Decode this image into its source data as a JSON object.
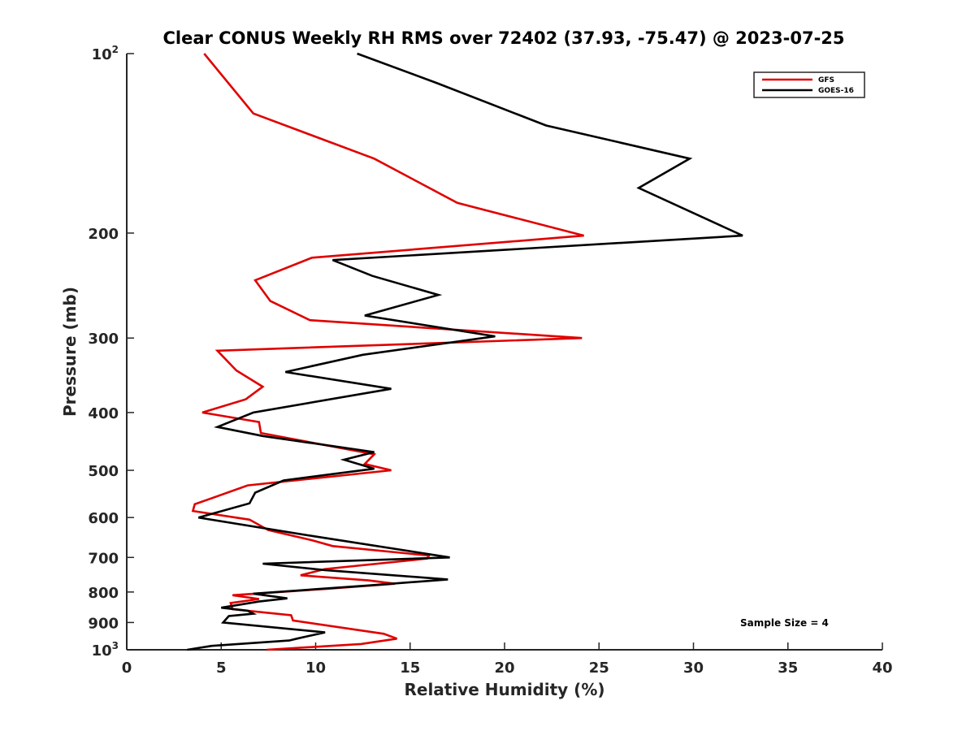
{
  "chart_data": {
    "type": "line",
    "title": "Clear CONUS Weekly RH RMS over 72402 (37.93, -75.47) @ 2023-07-25",
    "xlabel": "Relative Humidity (%)",
    "ylabel": "Pressure (mb)",
    "xlim": [
      0,
      40
    ],
    "ylim": [
      100,
      1000
    ],
    "yscale": "log",
    "yreverse": true,
    "x_ticks": [
      "0",
      "5",
      "10",
      "15",
      "20",
      "25",
      "30",
      "35",
      "40"
    ],
    "y_ticks": [
      {
        "value": 100,
        "base": "10",
        "exp": "2"
      },
      {
        "value": 200,
        "label": "200"
      },
      {
        "value": 300,
        "label": "300"
      },
      {
        "value": 400,
        "label": "400"
      },
      {
        "value": 500,
        "label": "500"
      },
      {
        "value": 600,
        "label": "600"
      },
      {
        "value": 700,
        "label": "700"
      },
      {
        "value": 800,
        "label": "800"
      },
      {
        "value": 900,
        "label": "900"
      },
      {
        "value": 1000,
        "base": "10",
        "exp": "3"
      }
    ],
    "legend_position": "top-right",
    "annotation": "Sample Size = 4",
    "series": [
      {
        "name": "GFS",
        "color": "#e00000",
        "points": [
          [
            4.1,
            100
          ],
          [
            6.7,
            126
          ],
          [
            13.1,
            150
          ],
          [
            17.5,
            178
          ],
          [
            24.2,
            202
          ],
          [
            9.8,
            220
          ],
          [
            6.8,
            240
          ],
          [
            7.6,
            260
          ],
          [
            9.7,
            280
          ],
          [
            24.1,
            300
          ],
          [
            4.8,
            315
          ],
          [
            5.8,
            340
          ],
          [
            7.2,
            362
          ],
          [
            6.3,
            380
          ],
          [
            4.0,
            400
          ],
          [
            7.0,
            415
          ],
          [
            7.1,
            433
          ],
          [
            13.1,
            470
          ],
          [
            12.6,
            488
          ],
          [
            14.0,
            500
          ],
          [
            6.4,
            530
          ],
          [
            3.6,
            570
          ],
          [
            3.5,
            585
          ],
          [
            6.5,
            605
          ],
          [
            7.5,
            630
          ],
          [
            9.8,
            655
          ],
          [
            10.9,
            670
          ],
          [
            16.0,
            695
          ],
          [
            15.9,
            703
          ],
          [
            10.5,
            732
          ],
          [
            9.2,
            750
          ],
          [
            12.8,
            765
          ],
          [
            14.2,
            775
          ],
          [
            10.6,
            790
          ],
          [
            5.6,
            810
          ],
          [
            7.0,
            822
          ],
          [
            5.5,
            835
          ],
          [
            5.6,
            855
          ],
          [
            8.7,
            875
          ],
          [
            8.8,
            893
          ],
          [
            13.6,
            940
          ],
          [
            14.3,
            958
          ],
          [
            12.4,
            978
          ],
          [
            7.4,
            1000
          ]
        ]
      },
      {
        "name": "GOES-16",
        "color": "#000000",
        "points": [
          [
            12.2,
            100
          ],
          [
            16.4,
            112
          ],
          [
            22.2,
            132
          ],
          [
            29.8,
            150
          ],
          [
            27.1,
            168
          ],
          [
            32.6,
            202
          ],
          [
            10.9,
            222
          ],
          [
            13.0,
            236
          ],
          [
            16.5,
            254
          ],
          [
            12.6,
            275
          ],
          [
            19.5,
            298
          ],
          [
            12.5,
            320
          ],
          [
            8.4,
            342
          ],
          [
            14.0,
            365
          ],
          [
            6.7,
            400
          ],
          [
            4.8,
            423
          ],
          [
            7.2,
            438
          ],
          [
            13.1,
            466
          ],
          [
            11.5,
            480
          ],
          [
            13.1,
            497
          ],
          [
            8.3,
            520
          ],
          [
            6.8,
            545
          ],
          [
            6.5,
            568
          ],
          [
            3.8,
            600
          ],
          [
            9.9,
            645
          ],
          [
            17.1,
            700
          ],
          [
            7.2,
            717
          ],
          [
            10.5,
            735
          ],
          [
            17.0,
            762
          ],
          [
            12.8,
            780
          ],
          [
            6.7,
            805
          ],
          [
            8.5,
            820
          ],
          [
            7.0,
            830
          ],
          [
            5.0,
            850
          ],
          [
            6.4,
            860
          ],
          [
            6.7,
            870
          ],
          [
            5.4,
            878
          ],
          [
            5.1,
            900
          ],
          [
            10.5,
            935
          ],
          [
            9.0,
            958
          ],
          [
            8.6,
            965
          ],
          [
            4.5,
            985
          ],
          [
            3.2,
            1000
          ]
        ]
      }
    ]
  }
}
